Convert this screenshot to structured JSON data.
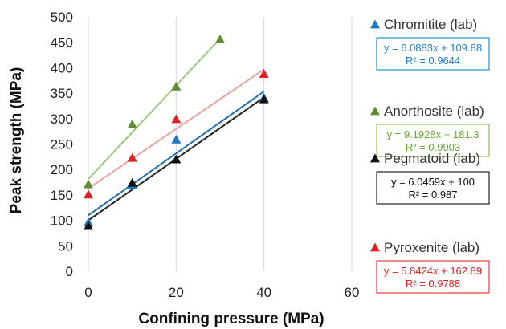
{
  "chart_data": {
    "type": "scatter",
    "xlabel": "Confining pressure (MPa)",
    "ylabel": "Peak strength (MPa)",
    "xlim": [
      0,
      60
    ],
    "ylim": [
      0,
      500
    ],
    "x_ticks": [
      0,
      20,
      40,
      60
    ],
    "y_ticks": [
      0,
      50,
      100,
      150,
      200,
      250,
      300,
      350,
      400,
      450,
      500
    ],
    "grid": "vertical",
    "legend_position": "right",
    "series": [
      {
        "name": "Chromitite (lab)",
        "marker": "triangle",
        "marker_color": "#1f77c4",
        "line_color": "#1f6fb2",
        "box_border": "#1f8fd0",
        "eq_color": "#1f7fd0",
        "points": [
          {
            "x": 0,
            "y": 95
          },
          {
            "x": 10,
            "y": 168
          },
          {
            "x": 20,
            "y": 258
          },
          {
            "x": 40,
            "y": 340
          }
        ],
        "trendline": {
          "slope": 6.0883,
          "intercept": 109.88,
          "x_range": [
            0,
            40
          ]
        },
        "equation": "y = 6.0883x + 109.88",
        "r2": "R² = 0.9644"
      },
      {
        "name": "Anorthosite (lab)",
        "marker": "triangle",
        "marker_color": "#5b8f2f",
        "line_color": "#9bc77a",
        "box_border": "#8cbf5a",
        "eq_color": "#6aa832",
        "points": [
          {
            "x": 0,
            "y": 170
          },
          {
            "x": 10,
            "y": 288
          },
          {
            "x": 20,
            "y": 362
          },
          {
            "x": 30,
            "y": 455
          }
        ],
        "trendline": {
          "slope": 9.1928,
          "intercept": 181.3,
          "x_range": [
            0,
            30
          ]
        },
        "equation": "y = 9.1928x + 181.3",
        "r2": "R² = 0.9903"
      },
      {
        "name": "Pegmatoid (lab)",
        "marker": "triangle",
        "marker_color": "#111111",
        "line_color": "#222222",
        "box_border": "#222222",
        "eq_color": "#111111",
        "points": [
          {
            "x": 0,
            "y": 88
          },
          {
            "x": 10,
            "y": 173
          },
          {
            "x": 20,
            "y": 219
          },
          {
            "x": 40,
            "y": 337
          }
        ],
        "trendline": {
          "slope": 6.0459,
          "intercept": 100,
          "x_range": [
            0,
            40
          ]
        },
        "equation": "y = 6.0459x + 100",
        "r2": "R² = 0.987"
      },
      {
        "name": "Pyroxenite (lab)",
        "marker": "triangle",
        "marker_color": "#e02020",
        "line_color": "#f0a0a0",
        "box_border": "#e83a3a",
        "eq_color": "#e02020",
        "points": [
          {
            "x": 0,
            "y": 150
          },
          {
            "x": 10,
            "y": 222
          },
          {
            "x": 20,
            "y": 298
          },
          {
            "x": 40,
            "y": 387
          }
        ],
        "trendline": {
          "slope": 5.8424,
          "intercept": 162.89,
          "x_range": [
            0,
            40
          ]
        },
        "equation": "y = 5.8424x + 162.89",
        "r2": "R² = 0.9788"
      }
    ]
  }
}
